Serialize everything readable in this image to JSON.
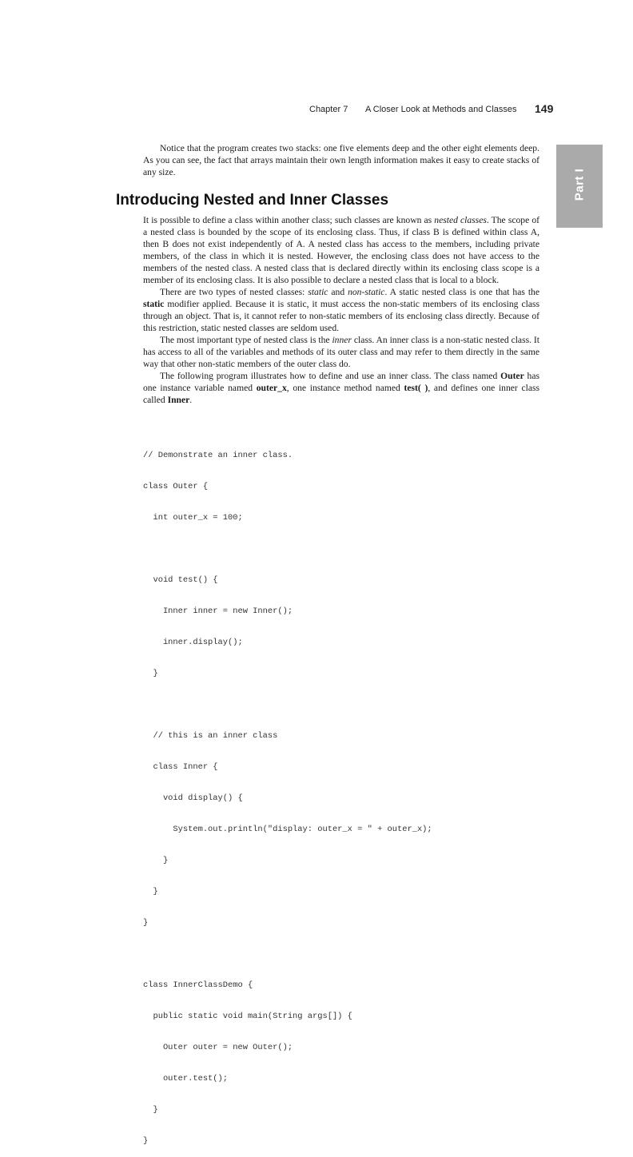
{
  "header": {
    "chapter": "Chapter 7",
    "chapter_title": "A Closer Look at Methods and Classes",
    "page_number": "149"
  },
  "part_tab": "Part I",
  "intro_paragraph": "Notice that the program creates two stacks: one five elements deep and the other eight elements deep. As you can see, the fact that arrays maintain their own length information makes it easy to create stacks of any size.",
  "section": {
    "title": "Introducing Nested and Inner Classes",
    "p1": "It is possible to define a class within another class; such classes are known as ",
    "p1_em": "nested classes",
    "p1_rest": ". The scope of a nested class is bounded by the scope of its enclosing class. Thus, if class B is defined within class A, then B does not exist independently of A. A nested class has access to the members, including private members, of the class in which it is nested. However, the enclosing class does not have access to the members of the nested class. A nested class that is declared directly within its enclosing class scope is a member of its enclosing class. It is also possible to declare a nested class that is local to a block.",
    "p2_a": "There are two types of nested classes: ",
    "p2_em1": "static",
    "p2_b": " and ",
    "p2_em2": "non-static",
    "p2_c": ". A static nested class is one that has the ",
    "p2_strong": "static",
    "p2_d": " modifier applied. Because it is static, it must access the non-static members of its enclosing class through an object. That is, it cannot refer to non-static members of its enclosing class directly. Because of this restriction, static nested classes are seldom used.",
    "p3_a": "The most important type of nested class is the ",
    "p3_em": "inner",
    "p3_b": " class. An inner class is a non-static nested class. It has access to all of the variables and methods of its outer class and may refer to them directly in the same way that other non-static members of the outer class do.",
    "p4_a": "The following program illustrates how to define and use an inner class. The class named ",
    "p4_s1": "Outer",
    "p4_b": " has one instance variable named ",
    "p4_s2": "outer_x",
    "p4_c": ", one instance method named ",
    "p4_s3": "test( )",
    "p4_d": ", and defines one inner class called ",
    "p4_s4": "Inner",
    "p4_e": "."
  },
  "code_lines": [
    "// Demonstrate an inner class.",
    "class Outer {",
    "  int outer_x = 100;",
    "",
    "  void test() {",
    "    Inner inner = new Inner();",
    "    inner.display();",
    "  }",
    "",
    "  // this is an inner class",
    "  class Inner {",
    "    void display() {",
    "      System.out.println(\"display: outer_x = \" + outer_x);",
    "    }",
    "  }",
    "}",
    "",
    "class InnerClassDemo {",
    "  public static void main(String args[]) {",
    "    Outer outer = new Outer();",
    "    outer.test();",
    "  }",
    "}"
  ]
}
